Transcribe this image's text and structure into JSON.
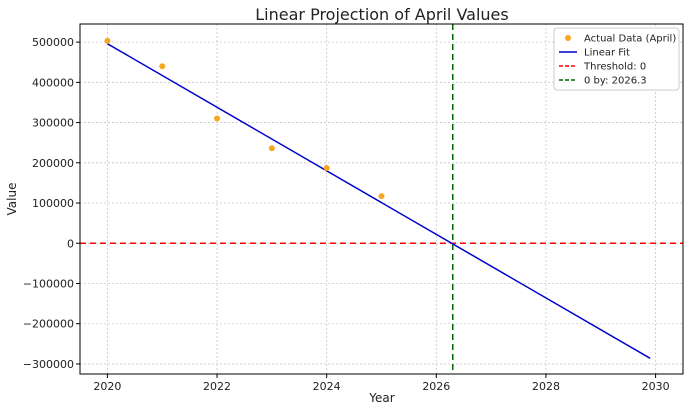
{
  "chart_data": {
    "type": "line",
    "title": "Linear Projection of April Values",
    "xlabel": "Year",
    "ylabel": "Value",
    "xlim": [
      2019.5,
      2030.5
    ],
    "ylim": [
      -325000,
      545000
    ],
    "x_ticks": [
      2020,
      2022,
      2024,
      2026,
      2028,
      2030
    ],
    "y_ticks": [
      -300000,
      -200000,
      -100000,
      0,
      100000,
      200000,
      300000,
      400000,
      500000
    ],
    "x_tick_labels": [
      "2020",
      "2022",
      "2024",
      "2026",
      "2028",
      "2030"
    ],
    "y_tick_labels": [
      "−300000",
      "−200000",
      "−100000",
      "0",
      "100000",
      "200000",
      "300000",
      "400000",
      "500000"
    ],
    "grid": true,
    "legend_position": "top-right",
    "series": [
      {
        "name": "Actual Data (April)",
        "kind": "scatter",
        "color": "#f5a623",
        "x": [
          2020,
          2021,
          2022,
          2023,
          2024,
          2025
        ],
        "y": [
          503000,
          440000,
          310000,
          236000,
          187000,
          117000
        ]
      },
      {
        "name": "Linear Fit",
        "kind": "line",
        "color": "#0000cc",
        "x": [
          2020,
          2029.9
        ],
        "y": [
          496000,
          -286000
        ]
      }
    ],
    "reference_lines": [
      {
        "name": "Threshold: 0",
        "orientation": "horizontal",
        "value": 0,
        "color": "#ff0000",
        "style": "dashed"
      },
      {
        "name": "0 by: 2026.3",
        "orientation": "vertical",
        "value": 2026.3,
        "color": "#006400",
        "style": "dashed"
      }
    ]
  }
}
